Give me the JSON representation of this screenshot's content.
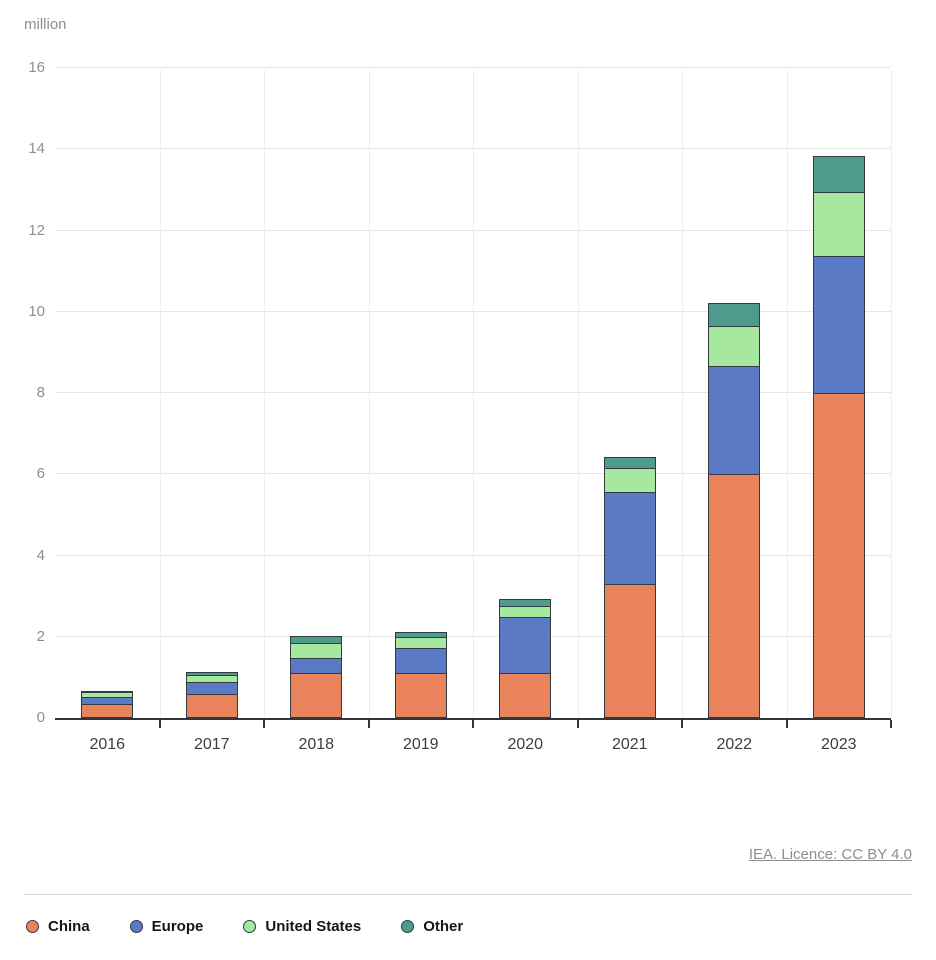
{
  "chart_data": {
    "type": "bar",
    "stacked": true,
    "unit_label": "million",
    "categories": [
      "2016",
      "2017",
      "2018",
      "2019",
      "2020",
      "2021",
      "2022",
      "2023"
    ],
    "series": [
      {
        "name": "China",
        "color": "#e8835c",
        "values": [
          0.35,
          0.6,
          1.1,
          1.1,
          1.1,
          3.3,
          6.0,
          8.0
        ]
      },
      {
        "name": "Europe",
        "color": "#5a7ac6",
        "values": [
          0.2,
          0.3,
          0.4,
          0.65,
          1.4,
          2.3,
          2.7,
          3.4
        ]
      },
      {
        "name": "United States",
        "color": "#a7e8a0",
        "values": [
          0.15,
          0.2,
          0.4,
          0.3,
          0.3,
          0.6,
          1.0,
          1.6
        ]
      },
      {
        "name": "Other",
        "color": "#4e9c8e",
        "values": [
          0.05,
          0.1,
          0.2,
          0.15,
          0.2,
          0.3,
          0.6,
          0.9
        ]
      }
    ],
    "totals": [
      0.75,
      1.2,
      2.1,
      2.2,
      3.0,
      6.5,
      10.3,
      13.9
    ],
    "ylim": [
      0,
      16
    ],
    "yticks": [
      0,
      2,
      4,
      6,
      8,
      10,
      12,
      14,
      16
    ],
    "grid": true,
    "legend_position": "bottom"
  },
  "footer": {
    "license_text": "IEA. Licence: CC BY 4.0"
  }
}
